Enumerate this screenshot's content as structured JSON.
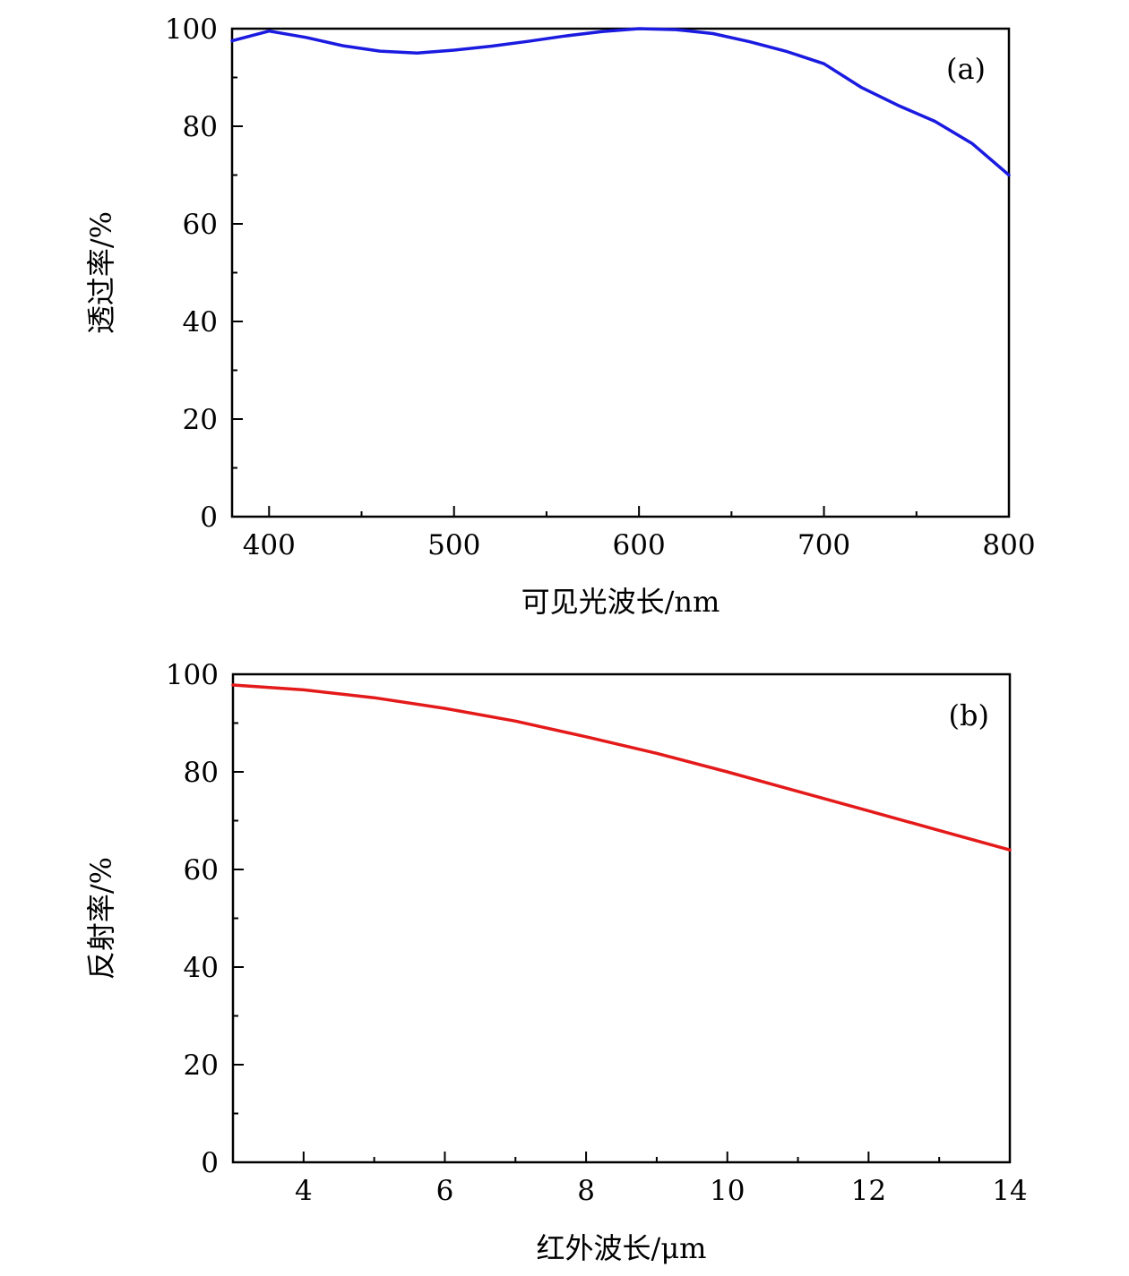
{
  "chart_data": [
    {
      "type": "line",
      "panel_label": "(a)",
      "xlabel": "可见光波长/nm",
      "ylabel": "透过率/%",
      "xlim": [
        380,
        800
      ],
      "ylim": [
        0,
        100
      ],
      "xticks": [
        400,
        500,
        600,
        700,
        800
      ],
      "xminor": [
        450,
        550,
        650,
        750
      ],
      "yticks": [
        0,
        20,
        40,
        60,
        80,
        100
      ],
      "yminor": [
        10,
        30,
        50,
        70,
        90
      ],
      "legend": "none",
      "grid": false,
      "series": [
        {
          "color": "#1a1ae0",
          "x": [
            380,
            400,
            420,
            440,
            460,
            480,
            500,
            520,
            540,
            560,
            580,
            600,
            620,
            640,
            660,
            680,
            700,
            720,
            740,
            760,
            780,
            800
          ],
          "y": [
            97.5,
            99.5,
            98.2,
            96.5,
            95.4,
            95.0,
            95.6,
            96.4,
            97.4,
            98.5,
            99.4,
            100.0,
            99.8,
            99.0,
            97.3,
            95.3,
            92.8,
            88.0,
            84.3,
            81.0,
            76.5,
            70.0
          ]
        }
      ]
    },
    {
      "type": "line",
      "panel_label": "(b)",
      "xlabel": "红外波长/μm",
      "ylabel": "反射率/%",
      "xlim": [
        3,
        14
      ],
      "ylim": [
        0,
        100
      ],
      "xticks": [
        4,
        6,
        8,
        10,
        12,
        14
      ],
      "xminor": [
        5,
        7,
        9,
        11,
        13
      ],
      "yticks": [
        0,
        20,
        40,
        60,
        80,
        100
      ],
      "yminor": [
        10,
        30,
        50,
        70,
        90
      ],
      "legend": "none",
      "grid": false,
      "series": [
        {
          "color": "#e41a1a",
          "x": [
            3,
            4,
            5,
            6,
            7,
            8,
            9,
            10,
            11,
            12,
            13,
            14
          ],
          "y": [
            97.8,
            96.8,
            95.2,
            93.0,
            90.4,
            87.2,
            83.8,
            80.0,
            76.0,
            72.0,
            68.0,
            64.0
          ]
        }
      ]
    }
  ]
}
